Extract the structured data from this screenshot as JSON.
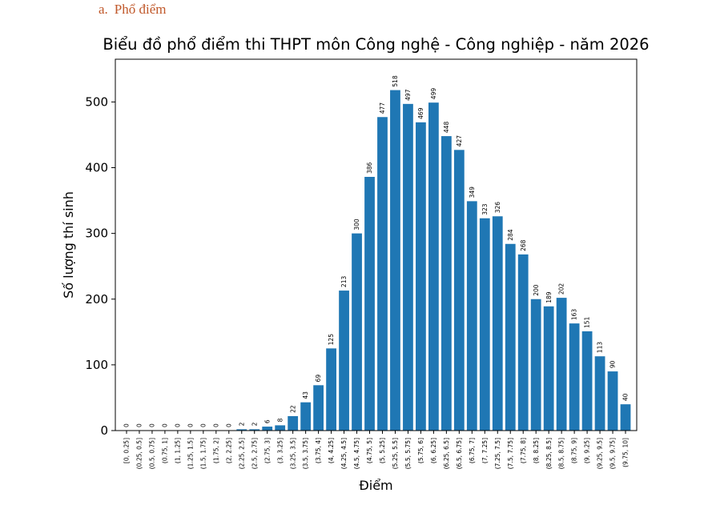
{
  "heading": {
    "number": "a.",
    "text": "Phổ điểm"
  },
  "chart_data": {
    "type": "bar",
    "title": "Biểu đồ phổ điểm thi THPT môn Công nghệ - Công nghiệp - năm 2026",
    "xlabel": "Điểm",
    "ylabel": "Số lượng thí sinh",
    "ylim": [
      0,
      565
    ],
    "yticks": [
      0,
      100,
      200,
      300,
      400,
      500
    ],
    "bar_color": "#1f77b4",
    "categories": [
      "[0, 0.25]",
      "(0.25, 0.5]",
      "(0.5, 0.75]",
      "(0.75, 1]",
      "(1, 1.25]",
      "(1.25, 1.5]",
      "(1.5, 1.75]",
      "(1.75, 2]",
      "(2, 2.25]",
      "(2.25, 2.5]",
      "(2.5, 2.75]",
      "(2.75, 3]",
      "(3, 3.25]",
      "(3.25, 3.5]",
      "(3.5, 3.75]",
      "(3.75, 4]",
      "(4, 4.25]",
      "(4.25, 4.5]",
      "(4.5, 4.75]",
      "(4.75, 5]",
      "(5, 5.25]",
      "(5.25, 5.5]",
      "(5.5, 5.75]",
      "(5.75, 6]",
      "(6, 6.25]",
      "(6.25, 6.5]",
      "(6.5, 6.75]",
      "(6.75, 7]",
      "(7, 7.25]",
      "(7.25, 7.5]",
      "(7.5, 7.75]",
      "(7.75, 8]",
      "(8, 8.25]",
      "(8.25, 8.5]",
      "(8.5, 8.75]",
      "(8.75, 9]",
      "(9, 9.25]",
      "(9.25, 9.5]",
      "(9.5, 9.75]",
      "(9.75, 10]"
    ],
    "values": [
      0,
      0,
      0,
      0,
      0,
      0,
      0,
      0,
      0,
      2,
      2,
      6,
      8,
      22,
      43,
      69,
      125,
      213,
      300,
      386,
      477,
      518,
      497,
      469,
      499,
      448,
      427,
      349,
      323,
      326,
      284,
      268,
      200,
      189,
      202,
      163,
      151,
      113,
      90,
      40
    ]
  }
}
